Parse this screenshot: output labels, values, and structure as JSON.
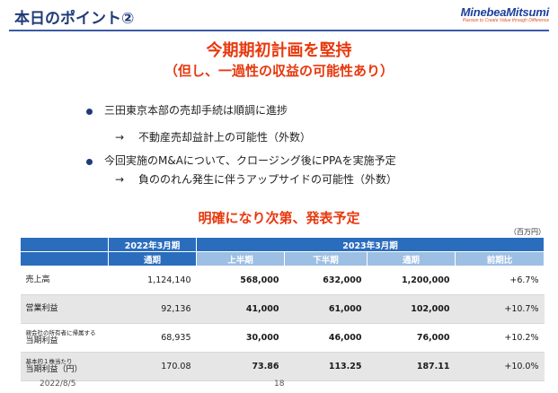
{
  "header": {
    "title": "本日のポイント②",
    "logo_text": "MinebeaMitsumi",
    "logo_tagline": "Passion to Create Value through Difference"
  },
  "headlines": {
    "line1": "今期期初計画を堅持",
    "line2": "（但し、一過性の収益の可能性あり）",
    "line3": "明確になり次第、発表予定"
  },
  "bullets": [
    {
      "text": "三田東京本部の売却手続は順調に進捗",
      "sub": "不動産売却益計上の可能性（外数）"
    },
    {
      "text": "今回実施のM&Aについて、クロージング後にPPAを実施予定",
      "sub": "負ののれん発生に伴うアップサイドの可能性（外数）"
    }
  ],
  "arrow_glyph": "→",
  "table": {
    "unit": "（百万円）",
    "period_headers": {
      "prev": "2022年3月期",
      "curr": "2023年3月期"
    },
    "sub_headers": {
      "prev_full": "通期",
      "h1": "上半期",
      "h2": "下半期",
      "full": "通期",
      "yoy": "前期比"
    },
    "rows": [
      {
        "label_small": "",
        "label": "売上高",
        "prev": "1,124,140",
        "h1": "568,000",
        "h2": "632,000",
        "full": "1,200,000",
        "yoy": "+6.7%"
      },
      {
        "label_small": "",
        "label": "営業利益",
        "prev": "92,136",
        "h1": "41,000",
        "h2": "61,000",
        "full": "102,000",
        "yoy": "+10.7%"
      },
      {
        "label_small": "親会社の所有者に帰属する",
        "label": "当期利益",
        "prev": "68,935",
        "h1": "30,000",
        "h2": "46,000",
        "full": "76,000",
        "yoy": "+10.2%"
      },
      {
        "label_small": "基本的１株当たり",
        "label": "当期利益（円）",
        "prev": "170.08",
        "h1": "73.86",
        "h2": "113.25",
        "full": "187.11",
        "yoy": "+10.0%"
      }
    ]
  },
  "footer": {
    "date": "2022/8/5",
    "page": "18"
  },
  "colors": {
    "title": "#1f3b78",
    "accent_red": "#e8380d",
    "table_header": "#2b6dbd",
    "table_subheader": "#9cbfe3"
  }
}
